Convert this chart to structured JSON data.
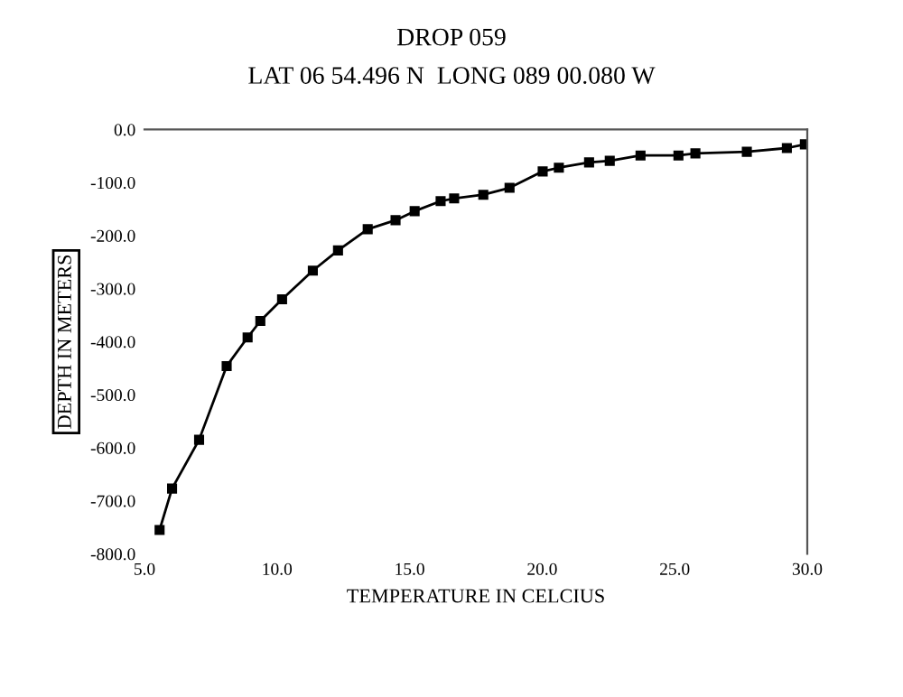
{
  "chart_data": {
    "type": "line",
    "title": "DROP 059",
    "subtitle": "LAT 06 54.496 N  LONG 089 00.080 W",
    "xlabel": "TEMPERATURE IN CELCIUS",
    "ylabel": "DEPTH IN METERS",
    "x": [
      5.57,
      6.04,
      7.06,
      8.1,
      8.89,
      9.37,
      10.19,
      11.35,
      12.3,
      13.42,
      14.47,
      15.19,
      16.17,
      16.68,
      17.78,
      18.77,
      20.02,
      20.63,
      21.77,
      22.55,
      23.71,
      25.14,
      25.78,
      27.72,
      29.23,
      29.91
    ],
    "series": [
      {
        "color": "#000000",
        "values": [
          -755,
          -677,
          -585,
          -446,
          -392,
          -361,
          -320,
          -266,
          -228,
          -188,
          -171,
          -154,
          -135,
          -130,
          -123,
          -110,
          -79,
          -72,
          -62,
          -59,
          -49,
          -49,
          -45,
          -42,
          -35,
          -28
        ]
      }
    ],
    "xlim": [
      5,
      30
    ],
    "xticks": [
      {
        "value": 5,
        "label": "5.0"
      },
      {
        "value": 10,
        "label": "10.0"
      },
      {
        "value": 15,
        "label": "15.0"
      },
      {
        "value": 20,
        "label": "20.0"
      },
      {
        "value": 25,
        "label": "25.0"
      },
      {
        "value": 30,
        "label": "30.0"
      }
    ],
    "ylim": [
      -800,
      0
    ],
    "yticks": [
      {
        "value": -800,
        "label": "-800.0"
      },
      {
        "value": -700,
        "label": "-700.0"
      },
      {
        "value": -600,
        "label": "-600.0"
      },
      {
        "value": -500,
        "label": "-500.0"
      },
      {
        "value": -400,
        "label": "-400.0"
      },
      {
        "value": -300,
        "label": "-300.0"
      },
      {
        "value": -200,
        "label": "-200.0"
      },
      {
        "value": -100,
        "label": "-100.0"
      },
      {
        "value": 0,
        "label": "0.0"
      }
    ],
    "grid": false,
    "legend": false,
    "marker": "square",
    "line_style": "solid"
  }
}
